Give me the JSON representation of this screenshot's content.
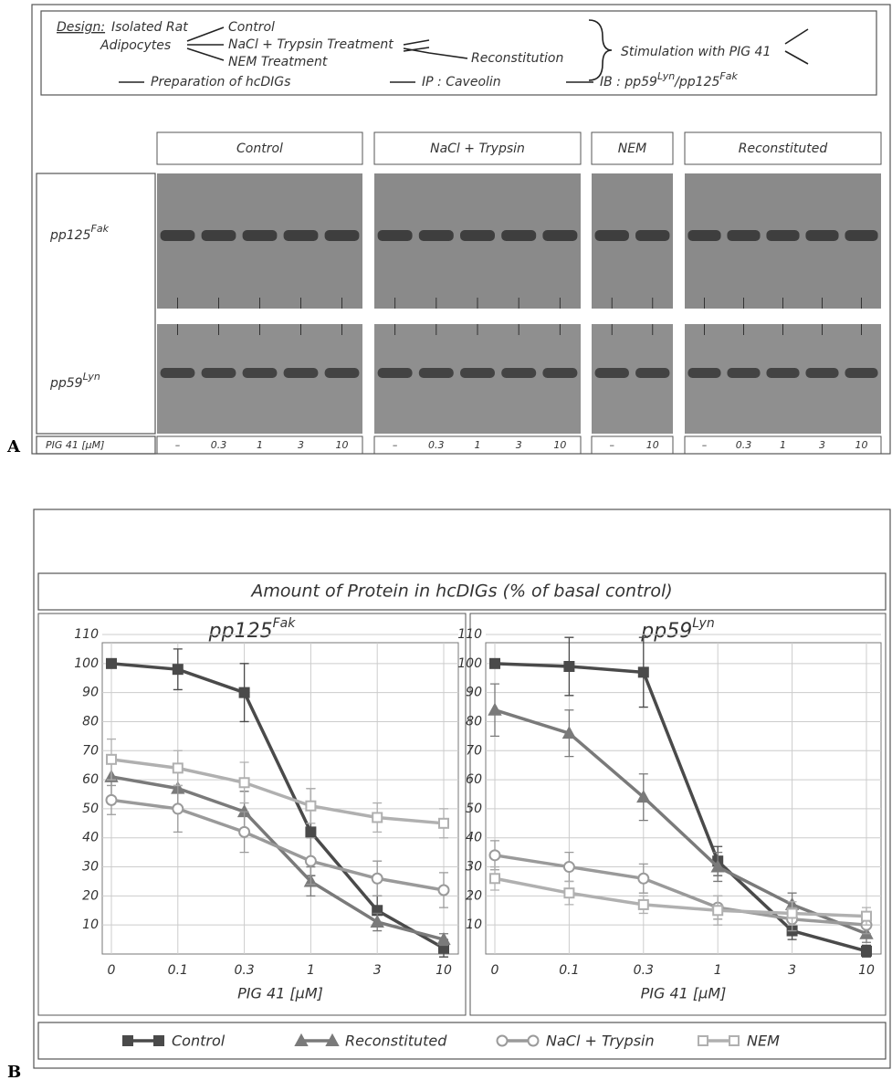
{
  "panel_a": {
    "label": "A",
    "design": {
      "heading": "Design:",
      "source": [
        "Isolated Rat",
        "Adipocytes"
      ],
      "treatments": [
        "Control",
        "NaCl + Trypsin Treatment",
        "NEM Treatment"
      ],
      "reconstitution": "Reconstitution",
      "stimulation": "Stimulation with PIG 41",
      "workflow": [
        "Preparation of hcDIGs",
        "IP : Caveolin"
      ],
      "blot": {
        "prefix": "IB : pp59",
        "sup1": "Lyn",
        "mid": "/pp125",
        "sup2": "Fak"
      }
    },
    "groups": [
      {
        "name": "Control",
        "lanes": [
          "–",
          "0.3",
          "1",
          "3",
          "10"
        ]
      },
      {
        "name": "NaCl + Trypsin",
        "lanes": [
          "–",
          "0.3",
          "1",
          "3",
          "10"
        ]
      },
      {
        "name": "NEM",
        "lanes": [
          "–",
          "10"
        ]
      },
      {
        "name": "Reconstituted",
        "lanes": [
          "–",
          "0.3",
          "1",
          "3",
          "10"
        ]
      }
    ],
    "rows": [
      {
        "name": "pp125",
        "sup": "Fak"
      },
      {
        "name": "pp59",
        "sup": "Lyn"
      }
    ],
    "dose_label": "PIG 41 [µM]"
  },
  "panel_b": {
    "label": "B",
    "title": "Amount of Protein in hcDIGs (% of basal control)"
  },
  "chart_data": [
    {
      "type": "line",
      "title": "pp125",
      "title_sup": "Fak",
      "x_label": "PIG 41 [µM]",
      "categories": [
        "0",
        "0.1",
        "0.3",
        "1",
        "3",
        "10"
      ],
      "ylim": [
        0,
        110
      ],
      "yticks": [
        10,
        20,
        30,
        40,
        50,
        60,
        70,
        80,
        90,
        100,
        110
      ],
      "grid": true,
      "series": [
        {
          "name": "Control",
          "color": "#4a4a4a",
          "marker": "square-filled",
          "values": [
            100,
            98,
            90,
            42,
            15,
            2
          ],
          "errors": [
            0,
            7,
            10,
            15,
            5,
            3
          ]
        },
        {
          "name": "Reconstituted",
          "color": "#7a7a7a",
          "marker": "triangle-filled",
          "values": [
            61,
            57,
            49,
            25,
            11,
            5
          ],
          "errors": [
            7,
            7,
            7,
            5,
            3,
            2
          ]
        },
        {
          "name": "NaCl + Trypsin",
          "color": "#9a9a9a",
          "marker": "circle-open",
          "values": [
            53,
            50,
            42,
            32,
            26,
            22
          ],
          "errors": [
            5,
            8,
            7,
            8,
            6,
            6
          ]
        },
        {
          "name": "NEM",
          "color": "#b0b0b0",
          "marker": "square-open",
          "values": [
            67,
            64,
            59,
            51,
            47,
            45
          ],
          "errors": [
            7,
            6,
            7,
            6,
            5,
            5
          ]
        }
      ]
    },
    {
      "type": "line",
      "title": "pp59",
      "title_sup": "Lyn",
      "x_label": "PIG 41 [µM]",
      "categories": [
        "0",
        "0.1",
        "0.3",
        "1",
        "3",
        "10"
      ],
      "ylim": [
        0,
        110
      ],
      "yticks": [
        10,
        20,
        30,
        40,
        50,
        60,
        70,
        80,
        90,
        100,
        110
      ],
      "grid": true,
      "series": [
        {
          "name": "Control",
          "color": "#4a4a4a",
          "marker": "square-filled",
          "values": [
            100,
            99,
            97,
            32,
            8,
            1
          ],
          "errors": [
            0,
            10,
            12,
            5,
            3,
            2
          ]
        },
        {
          "name": "Reconstituted",
          "color": "#7a7a7a",
          "marker": "triangle-filled",
          "values": [
            84,
            76,
            54,
            30,
            17,
            7
          ],
          "errors": [
            9,
            8,
            8,
            5,
            4,
            3
          ]
        },
        {
          "name": "NaCl + Trypsin",
          "color": "#9a9a9a",
          "marker": "circle-open",
          "values": [
            34,
            30,
            26,
            16,
            12,
            10
          ],
          "errors": [
            5,
            5,
            5,
            4,
            4,
            3
          ]
        },
        {
          "name": "NEM",
          "color": "#b0b0b0",
          "marker": "square-open",
          "values": [
            26,
            21,
            17,
            15,
            14,
            13
          ],
          "errors": [
            4,
            4,
            3,
            5,
            4,
            3
          ]
        }
      ]
    }
  ]
}
